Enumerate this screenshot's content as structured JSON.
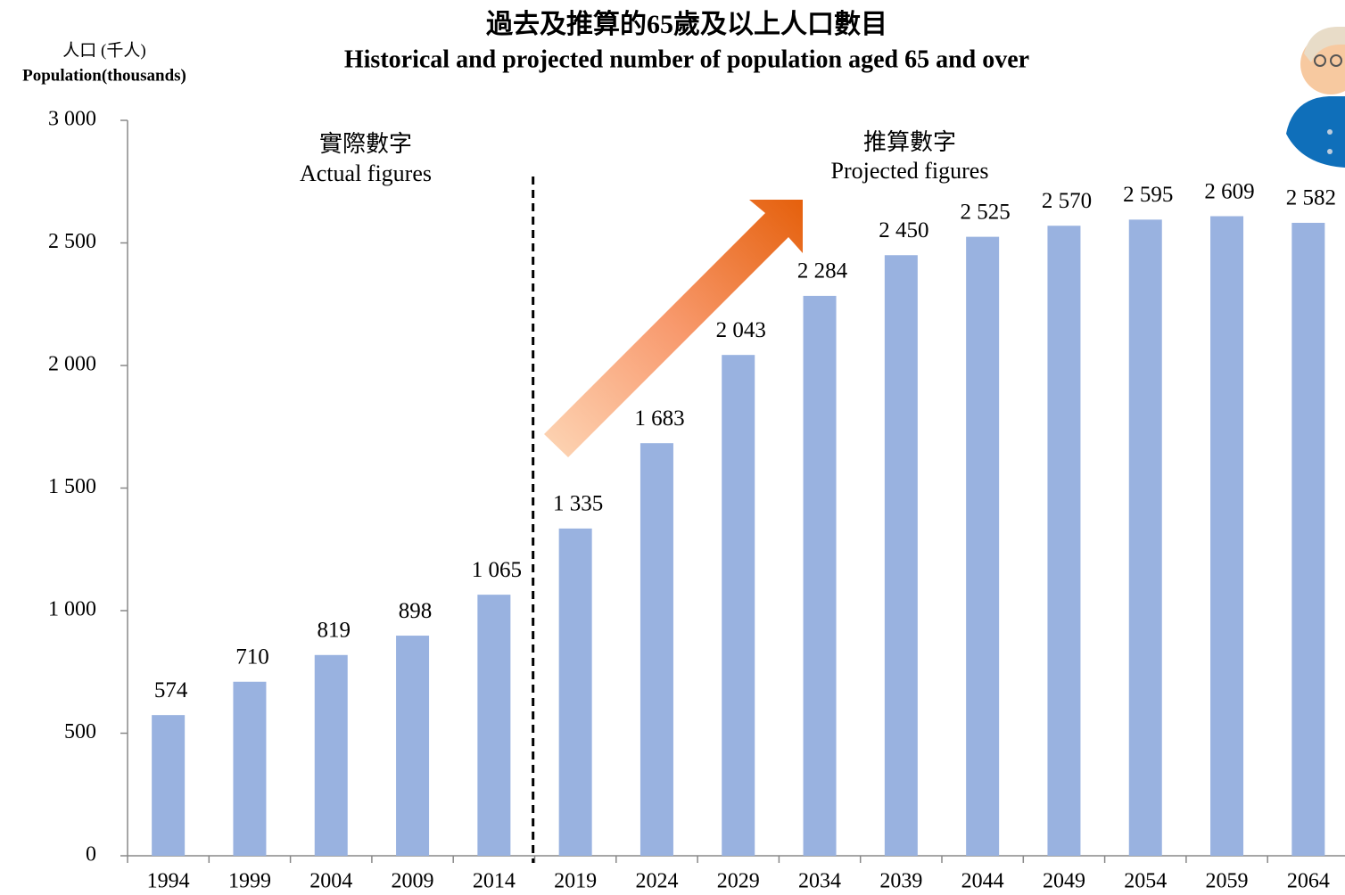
{
  "chart_data": {
    "type": "bar",
    "title": "過去及推算的65歲及以上人口數目",
    "subtitle": "Historical and projected number of population aged 65 and over",
    "ylabel": [
      "人口 (千人)",
      "Population(thousands)"
    ],
    "annotations": [
      "實際數字",
      "Actual figures",
      "推算數字",
      "Projected figures"
    ],
    "categories": [
      "1994",
      "1999",
      "2004",
      "2009",
      "2014",
      "2019",
      "2024",
      "2029",
      "2034",
      "2039",
      "2044",
      "2049",
      "2054",
      "2059",
      "2064"
    ],
    "values": [
      574,
      710,
      819,
      898,
      1065,
      1335,
      1683,
      2043,
      2284,
      2450,
      2525,
      2570,
      2595,
      2609,
      2582
    ],
    "value_labels": [
      "574",
      "710",
      "819",
      "898",
      "1 065",
      "1 335",
      "1 683",
      "2 043",
      "2 284",
      "2 450",
      "2 525",
      "2 570",
      "2 595",
      "2 609",
      "2 582"
    ],
    "color": "#99b2e0",
    "ylim": [
      0,
      3000
    ],
    "yticks": [
      0,
      500,
      {
        "value": 1000,
        "label": "1 000"
      },
      {
        "value": 1500,
        "label": "1 500"
      },
      {
        "value": 2000,
        "label": "2 000"
      },
      {
        "value": 2500,
        "label": "2 500"
      },
      {
        "value": 3000,
        "label": "3 000"
      }
    ],
    "grid": false
  }
}
